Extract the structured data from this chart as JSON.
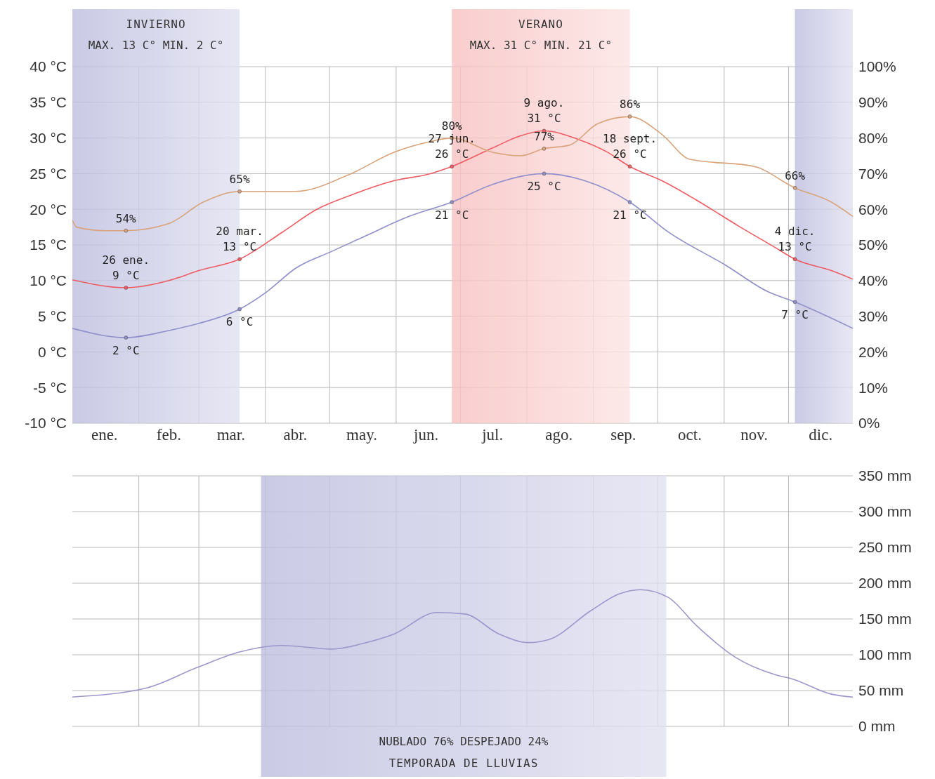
{
  "chart_data": [
    {
      "type": "line",
      "xlim": [
        "--01-01",
        "--12-31"
      ],
      "xticks": [
        {
          "value": "--02-01",
          "label": null
        },
        {
          "value": "--03-01",
          "label": null
        },
        {
          "value": "--04-01",
          "label": null
        },
        {
          "value": "--05-01",
          "label": null
        },
        {
          "value": "--06-01",
          "label": null
        },
        {
          "value": "--07-01",
          "label": null
        },
        {
          "value": "--08-01",
          "label": null
        },
        {
          "value": "--09-01",
          "label": null
        },
        {
          "value": "--10-01",
          "label": null
        },
        {
          "value": "--11-01",
          "label": null
        },
        {
          "value": "--12-01",
          "label": null
        },
        {
          "value": "--01-16",
          "label": "ene."
        },
        {
          "value": "--02-15",
          "label": "feb."
        },
        {
          "value": "--03-16",
          "label": "mar."
        },
        {
          "value": "--04-15",
          "label": "abr."
        },
        {
          "value": "--05-16",
          "label": "may."
        },
        {
          "value": "--06-15",
          "label": "jun."
        },
        {
          "value": "--07-16",
          "label": "jul."
        },
        {
          "value": "--08-16",
          "label": "ago."
        },
        {
          "value": "--09-15",
          "label": "sep."
        },
        {
          "value": "--10-16",
          "label": "oct."
        },
        {
          "value": "--11-15",
          "label": "nov."
        },
        {
          "value": "--12-16",
          "label": "dic."
        }
      ],
      "ylim": [
        -10,
        40
      ],
      "yticks": [
        {
          "value": -10,
          "label": "-10 °C"
        },
        {
          "value": -5,
          "label": "-5 °C"
        },
        {
          "value": 0,
          "label": "0 °C"
        },
        {
          "value": 5,
          "label": "5 °C"
        },
        {
          "value": 10,
          "label": "10 °C"
        },
        {
          "value": 15,
          "label": "15 °C"
        },
        {
          "value": 20,
          "label": "20 °C"
        },
        {
          "value": 25,
          "label": "25 °C"
        },
        {
          "value": 30,
          "label": "30 °C"
        },
        {
          "value": 35,
          "label": "35 °C"
        },
        {
          "value": 40,
          "label": "40 °C"
        }
      ],
      "y2lim": [
        0,
        100
      ],
      "y2ticks": [
        {
          "value": 0,
          "label": "0%"
        },
        {
          "value": 10,
          "label": "10%"
        },
        {
          "value": 20,
          "label": "20%"
        },
        {
          "value": 30,
          "label": "30%"
        },
        {
          "value": 40,
          "label": "40%"
        },
        {
          "value": 50,
          "label": "50%"
        },
        {
          "value": 60,
          "label": "60%"
        },
        {
          "value": 70,
          "label": "70%"
        },
        {
          "value": 80,
          "label": "80%"
        },
        {
          "value": 90,
          "label": "90%"
        },
        {
          "value": 100,
          "label": "100%"
        }
      ],
      "grid": true,
      "bands": [
        {
          "axis": "x",
          "from": "--01-01",
          "to": "--03-20",
          "label": "INVIERNO\nMAX. 13 C° MIN. 2 C°",
          "color": "#bdbddf"
        },
        {
          "axis": "x",
          "from": "--06-27",
          "to": "--09-18",
          "label": "VERANO\nMAX. 31 C° MIN. 21 C°",
          "color": "#f8c0c0"
        },
        {
          "axis": "x",
          "from": "--12-04",
          "to": "--12-31",
          "color": "#bdbddf"
        }
      ],
      "series": [
        {
          "color": "#ef5b62",
          "x": [
            "--01-01",
            "--01-26",
            "--02-15",
            "--03-01",
            "--03-20",
            "--04-09",
            "--04-25",
            "--05-11",
            "--05-31",
            "--06-17",
            "--06-27",
            "--07-16",
            "--07-29",
            "--08-09",
            "--08-25",
            "--09-07",
            "--09-18",
            "--10-03",
            "--10-19",
            "--11-08",
            "--11-25",
            "--12-04",
            "--12-21",
            "--12-31"
          ],
          "values": [
            10.1,
            9,
            10,
            11.4,
            13,
            16.8,
            20,
            22,
            24,
            25,
            26,
            28.6,
            30.3,
            31,
            29.8,
            28.1,
            26,
            24,
            21.3,
            17.6,
            14.6,
            13,
            11.4,
            10.2
          ],
          "value_labels": [
            null,
            "26 ene.\n9 °C",
            null,
            null,
            "20 mar.\n13 °C",
            null,
            null,
            null,
            null,
            null,
            "27 jun.\n26 °C",
            null,
            null,
            "9 ago.\n31 °C",
            null,
            null,
            "18 sept.\n26 °C",
            null,
            null,
            null,
            null,
            "4 dic.\n13 °C",
            null,
            null
          ]
        },
        {
          "color": "#8f8fcc",
          "x": [
            "--01-01",
            "--01-26",
            "--02-15",
            "--03-01",
            "--03-20",
            "--04-02",
            "--04-15",
            "--05-02",
            "--05-18",
            "--06-07",
            "--06-27",
            "--07-16",
            "--08-09",
            "--08-28",
            "--09-18",
            "--10-06",
            "--11-02",
            "--11-21",
            "--12-04",
            "--12-31"
          ],
          "values": [
            3.3,
            2,
            3,
            4,
            6,
            8.5,
            11.7,
            14.1,
            16.3,
            19,
            21,
            23.5,
            25,
            24,
            21,
            16.8,
            12.1,
            8.5,
            7,
            3.3
          ],
          "value_labels": [
            null,
            "2 °C",
            null,
            null,
            "6 °C",
            null,
            null,
            null,
            null,
            null,
            "21 °C",
            null,
            "25 °C",
            null,
            "21 °C",
            null,
            null,
            null,
            "7 °C",
            null
          ]
        },
        {
          "color": "#d9a37a",
          "axis": "y2",
          "x": [
            "--01-01",
            "--01-03",
            "--01-16",
            "--01-26",
            "--02-15",
            "--03-03",
            "--03-20",
            "--04-15",
            "--05-11",
            "--05-31",
            "--06-17",
            "--06-27",
            "--07-16",
            "--07-29",
            "--08-09",
            "--08-21",
            "--09-03",
            "--09-18",
            "--10-03",
            "--10-16",
            "--11-15",
            "--12-04",
            "--12-21",
            "--12-31"
          ],
          "values": [
            57,
            55,
            54,
            54,
            56,
            62,
            65,
            65,
            70,
            76,
            79,
            80,
            76,
            75,
            77,
            78,
            84,
            86,
            81,
            74,
            72,
            66,
            62,
            58
          ],
          "value_labels": [
            null,
            null,
            null,
            "54%",
            null,
            null,
            "65%",
            null,
            null,
            null,
            null,
            "80%",
            null,
            null,
            "77%",
            null,
            null,
            "86%",
            null,
            null,
            null,
            "66%",
            null,
            null
          ]
        }
      ]
    },
    {
      "type": "line",
      "xlim": [
        "--01-01",
        "--12-31"
      ],
      "xticks": [
        {
          "value": "--02-01",
          "label": null
        },
        {
          "value": "--03-01",
          "label": null
        },
        {
          "value": "--04-01",
          "label": null
        },
        {
          "value": "--05-01",
          "label": null
        },
        {
          "value": "--06-01",
          "label": null
        },
        {
          "value": "--07-01",
          "label": null
        },
        {
          "value": "--08-01",
          "label": null
        },
        {
          "value": "--09-01",
          "label": null
        },
        {
          "value": "--10-01",
          "label": null
        },
        {
          "value": "--11-01",
          "label": null
        },
        {
          "value": "--12-01",
          "label": null
        }
      ],
      "ylim": [
        0,
        350
      ],
      "yticks": [
        {
          "value": 0,
          "label": "0 mm"
        },
        {
          "value": 50,
          "label": "50 mm"
        },
        {
          "value": 100,
          "label": "100 mm"
        },
        {
          "value": 150,
          "label": "150 mm"
        },
        {
          "value": 200,
          "label": "200 mm"
        },
        {
          "value": 250,
          "label": "250 mm"
        },
        {
          "value": 300,
          "label": "300 mm"
        },
        {
          "value": 350,
          "label": "350 mm"
        }
      ],
      "tick_labels": "y",
      "grid": true,
      "bands": [
        {
          "axis": "x",
          "from": "--03-30",
          "to": "--10-05",
          "label": "NUBLADO 76%   DESPEJADO 24%\nTEMPORADA DE LLUVIAS",
          "color": "#bdbddf"
        }
      ],
      "series": [
        {
          "color": "#9d95cc",
          "x": [
            "--01-01",
            "--02-05",
            "--02-28",
            "--03-20",
            "--04-09",
            "--05-02",
            "--05-18",
            "--05-31",
            "--06-20",
            "--07-03",
            "--07-19",
            "--08-02",
            "--08-11",
            "--08-31",
            "--09-13",
            "--09-23",
            "--10-06",
            "--10-19",
            "--11-06",
            "--11-25",
            "--12-03",
            "--12-21",
            "--12-31"
          ],
          "values": [
            41,
            54,
            82,
            104,
            113,
            108,
            117,
            129,
            159,
            157,
            129,
            117,
            121,
            162,
            185,
            191,
            180,
            141,
            97,
            72,
            66,
            45,
            41
          ]
        }
      ]
    }
  ]
}
